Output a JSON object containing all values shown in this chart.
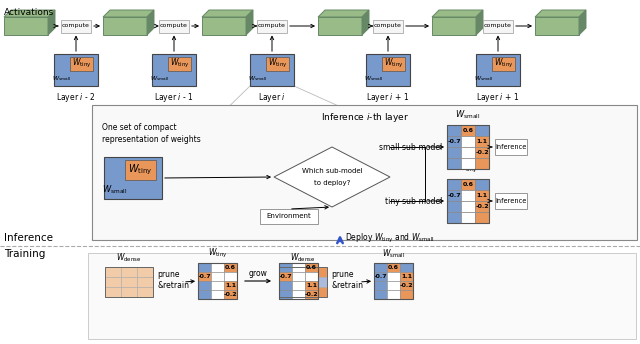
{
  "activation_label": "Activations",
  "layer_labels": [
    "Layer $i$ - 2",
    "Layer $i$ - 1",
    "Layer $i$",
    "Layer $i$ + 1",
    "Layer $i$ + 1"
  ],
  "compute_label": "compute",
  "inference_section_label": "Inference $i$-th layer",
  "color_blue": "#7799cc",
  "color_blue_light": "#aabbdd",
  "color_orange": "#e8965a",
  "color_orange_light": "#f2cba8",
  "color_green_face": "#99bb88",
  "color_green_dark": "#668866",
  "color_white": "#ffffff",
  "color_gray_border": "#999999",
  "inference_label": "Inference",
  "training_label": "Training",
  "deploy_label": "Deploy $W_{\\mathrm{tiny}}$ and $W_{\\mathrm{small}}$",
  "small_submodel_label": "small sub-model",
  "tiny_submodel_label": "tiny sub-model",
  "environment_label": "Environment",
  "one_set_label": "One set of compact\nrepresentation of weights",
  "prune_retrain_label": "prune\n&retrain",
  "grow_label": "grow",
  "bg_color": "#ffffff"
}
